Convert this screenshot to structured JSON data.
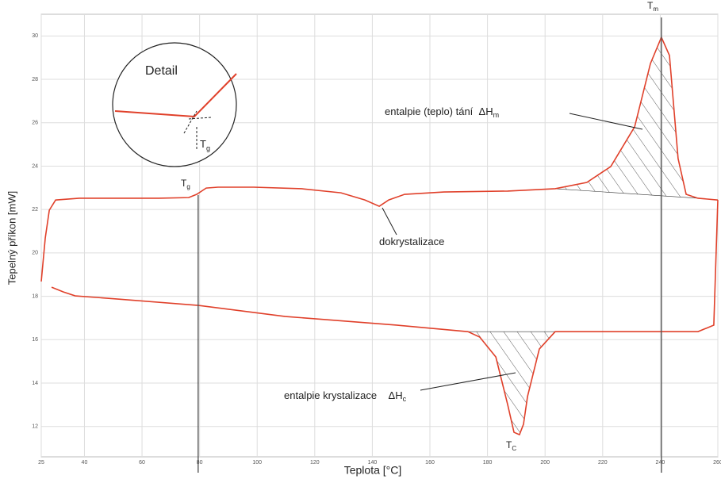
{
  "chart_data": {
    "type": "line",
    "x_label": "Teplota [°C]",
    "y_label": "Tepelný příkon [mW]",
    "xlim": [
      25,
      260
    ],
    "xticks": [
      25,
      40,
      60,
      80,
      100,
      120,
      140,
      160,
      180,
      200,
      220,
      240,
      260
    ],
    "ylim": [
      10.6,
      31
    ],
    "yticks": [
      12,
      14,
      16,
      18,
      20,
      22,
      24,
      26,
      28,
      30
    ],
    "grid": true,
    "series": [
      {
        "color": "#e0402a",
        "x": [
          25,
          26.4,
          27.8,
          30,
          38.2,
          65.8,
          76.2,
          79,
          82.3,
          86.4,
          98.8,
          115.4,
          129.1,
          137.4,
          142.4,
          145.7,
          151.2,
          164.9,
          187,
          203.5,
          214.5,
          222.8,
          231.1,
          236.6,
          240.4,
          243.2,
          246.2,
          249,
          253.1,
          260
        ],
        "values": [
          18.68,
          20.69,
          21.97,
          22.44,
          22.52,
          22.52,
          22.55,
          22.7,
          22.99,
          23.03,
          23.03,
          22.96,
          22.77,
          22.44,
          22.15,
          22.44,
          22.7,
          22.81,
          22.85,
          22.96,
          23.25,
          23.98,
          25.81,
          28.73,
          29.94,
          29.1,
          24.35,
          22.7,
          22.52,
          22.44
        ]
      },
      {
        "color": "#e0402a",
        "x": [
          260,
          258.6,
          253.1,
          231.1,
          203.5,
          198,
          193.9,
          192.5,
          191.1,
          189.2,
          187,
          182.9,
          177.3,
          173.2,
          148.4,
          109.8,
          79.5,
          52,
          36.8,
          32.7,
          28.6
        ],
        "values": [
          22.44,
          16.67,
          16.37,
          16.37,
          16.37,
          15.57,
          13.38,
          12.1,
          11.62,
          11.73,
          13.01,
          15.2,
          16.12,
          16.37,
          16.67,
          17.07,
          17.58,
          17.87,
          18.02,
          18.2,
          18.42
        ]
      }
    ],
    "markers": [
      {
        "text": "T",
        "sub": "g",
        "x": 79.5,
        "line": true
      },
      {
        "text": "T",
        "sub": "m",
        "x": 240.4,
        "line": true
      },
      {
        "text": "T",
        "sub": "C",
        "x": 191.1,
        "line": false
      }
    ],
    "annotations": [
      {
        "text": "entalpie (teplo) tání  ΔH",
        "sub": "m"
      },
      {
        "text": "dokrystalizace"
      },
      {
        "text": "entalpie krystalizace    ΔH",
        "sub": "c"
      }
    ],
    "detail": {
      "title": "Detail",
      "text": "T",
      "sub": "g"
    }
  }
}
